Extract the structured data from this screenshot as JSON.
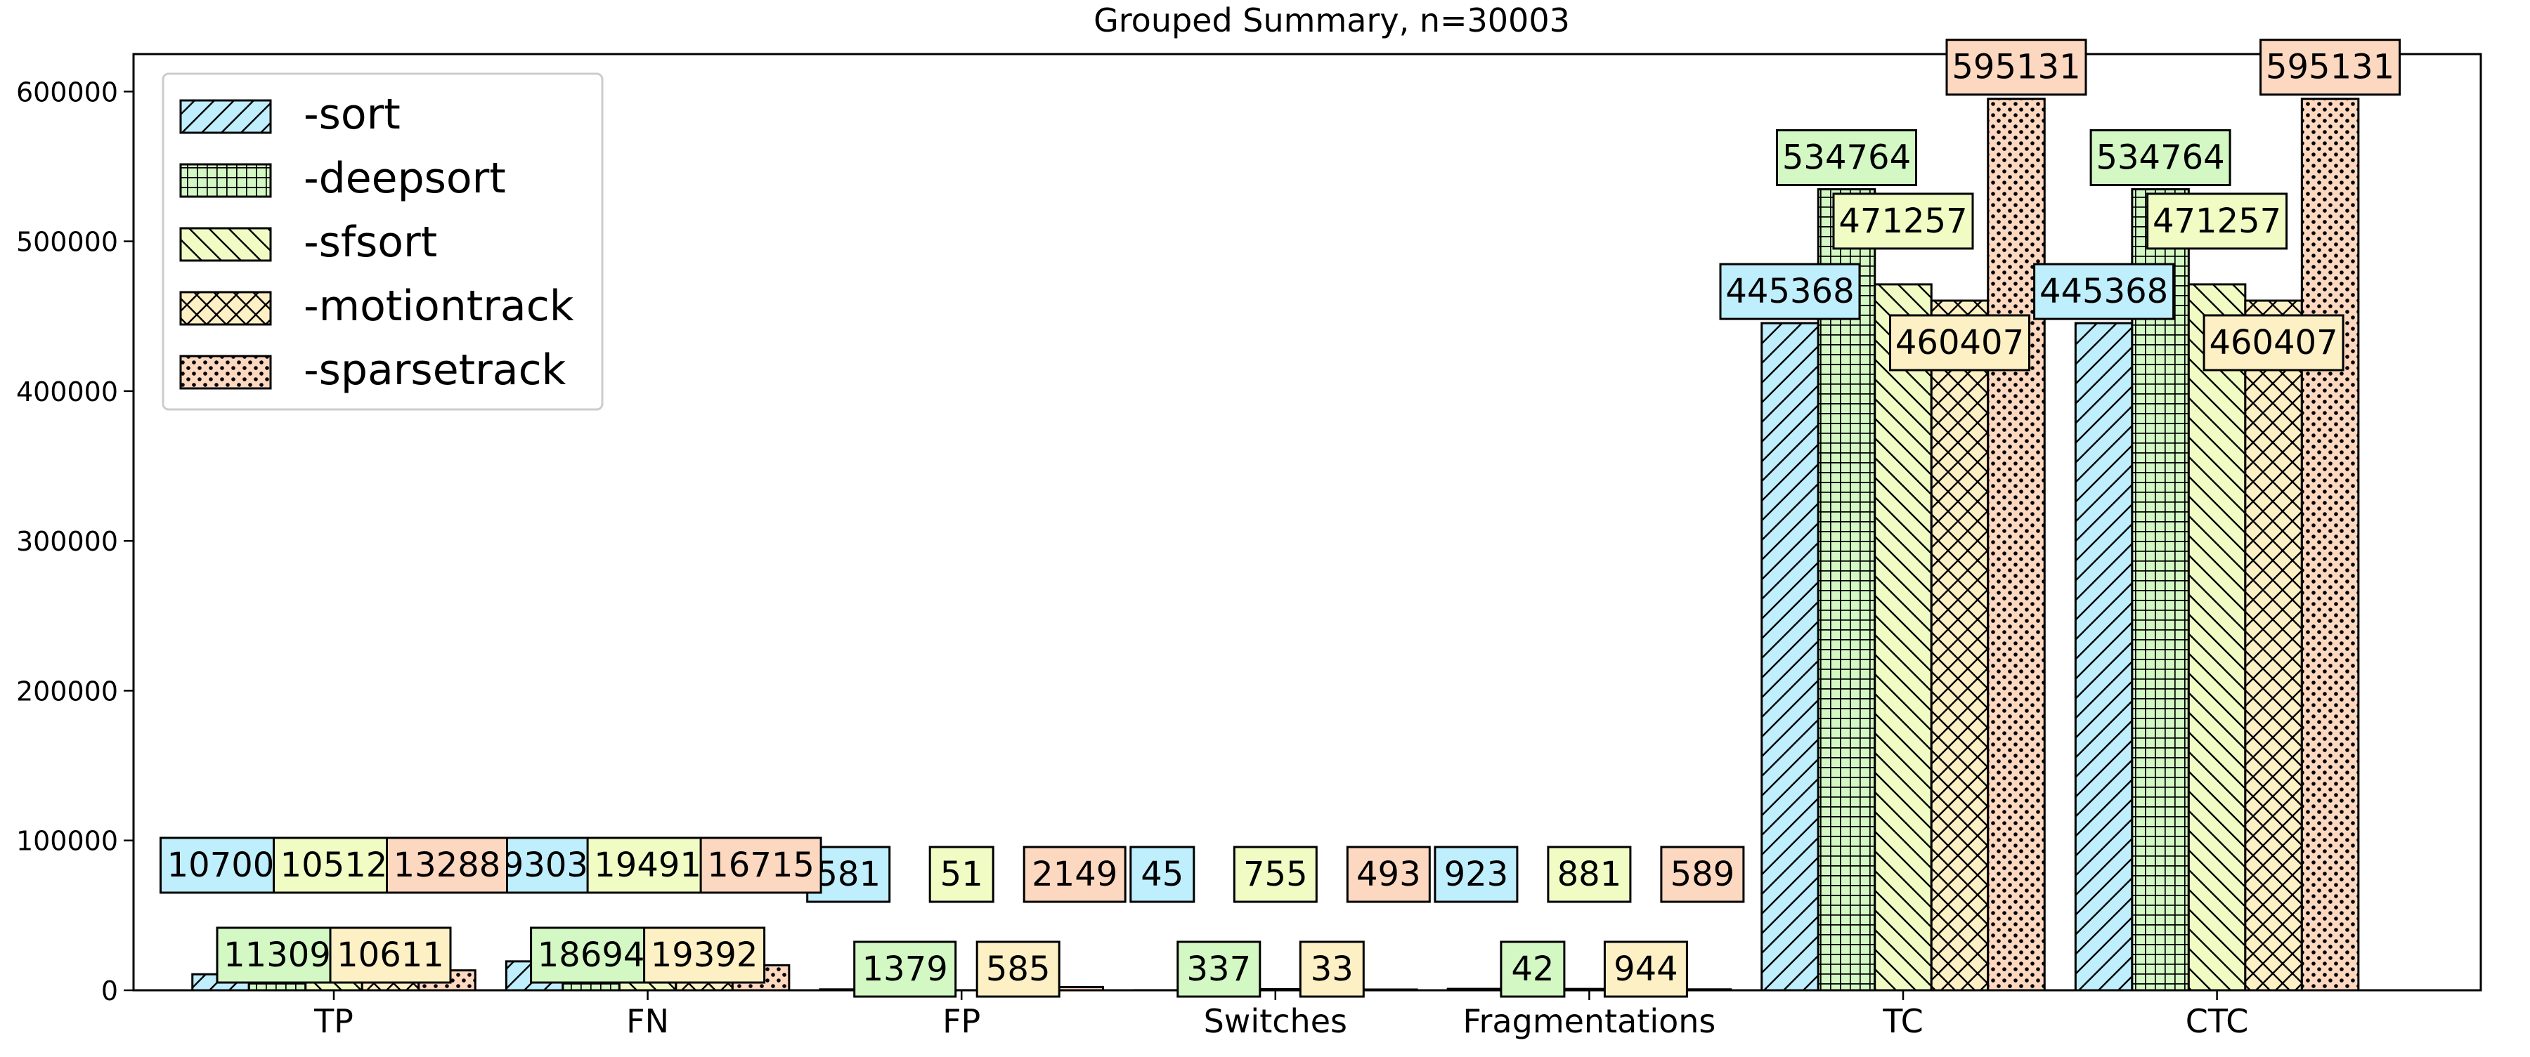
{
  "chart_data": {
    "type": "bar",
    "title": "Grouped Summary, n=30003",
    "xlabel": "",
    "ylabel": "",
    "categories": [
      "TP",
      "FN",
      "FP",
      "Switches",
      "Fragmentations",
      "TC",
      "CTC"
    ],
    "ylim": [
      0,
      625000
    ],
    "yticks": [
      0,
      100000,
      200000,
      300000,
      400000,
      500000,
      600000
    ],
    "grid": false,
    "legend_position": "upper-left",
    "series": [
      {
        "name": "-sort",
        "values": [
          10700,
          19303,
          581,
          45,
          923,
          445368,
          445368
        ],
        "labels": [
          "10700",
          "19303",
          "581",
          "45",
          "923",
          "445368",
          "445368"
        ],
        "color": "#bfeefc",
        "hatch": "diagonal"
      },
      {
        "name": "-deepsort",
        "values": [
          11309,
          18694,
          1379,
          337,
          42,
          534764,
          534764
        ],
        "labels": [
          "11309",
          "18694",
          "1379",
          "337",
          "42",
          "534764",
          "534764"
        ],
        "color": "#d3f8c4",
        "hatch": "grid"
      },
      {
        "name": "-sfsort",
        "values": [
          10512,
          19491,
          51,
          755,
          881,
          471257,
          471257
        ],
        "labels": [
          "10512",
          "19491",
          "51",
          "755",
          "881",
          "471257",
          "471257"
        ],
        "color": "#f1fcc5",
        "hatch": "back-diagonal"
      },
      {
        "name": "-motiontrack",
        "values": [
          10611,
          19392,
          585,
          33,
          944,
          460407,
          460407
        ],
        "labels": [
          "10611",
          "19392",
          "585",
          "33",
          "944",
          "460407",
          "460407"
        ],
        "color": "#fdf0c4",
        "hatch": "crosshatch"
      },
      {
        "name": "-sparsetrack",
        "values": [
          13288,
          16715,
          2149,
          493,
          589,
          595131,
          595131
        ],
        "labels": [
          "13288",
          "16715",
          "2149",
          "493",
          "589",
          "595131",
          "595131"
        ],
        "color": "#fdd8c0",
        "hatch": "dots"
      }
    ]
  }
}
